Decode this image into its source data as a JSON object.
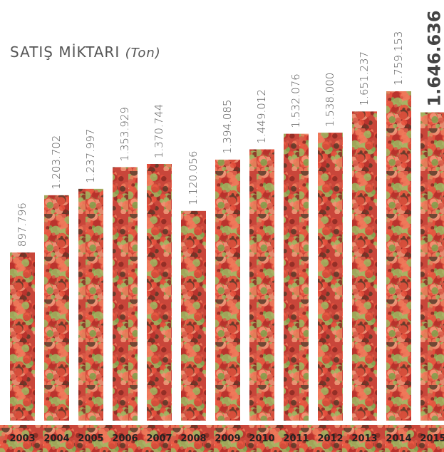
{
  "chart_data": {
    "type": "bar",
    "title": "SATIŞ MİKTARI",
    "subtitle": "(Ton)",
    "categories": [
      "2003",
      "2004",
      "2005",
      "2006",
      "2007",
      "2008",
      "2009",
      "2010",
      "2011",
      "2012",
      "2013",
      "2014",
      "2015"
    ],
    "values": [
      897796,
      1203702,
      1237997,
      1353929,
      1370744,
      1120056,
      1394085,
      1449012,
      1532076,
      1538000,
      1651237,
      1759153,
      1646636
    ],
    "value_labels": [
      "897.796",
      "1.203.702",
      "1.237.997",
      "1.353.929",
      "1.370.744",
      "1.120.056",
      "1.394.085",
      "1.449.012",
      "1.532.076",
      "1.538.000",
      "1.651.237",
      "1.759.153",
      "1.646.636"
    ]
  }
}
